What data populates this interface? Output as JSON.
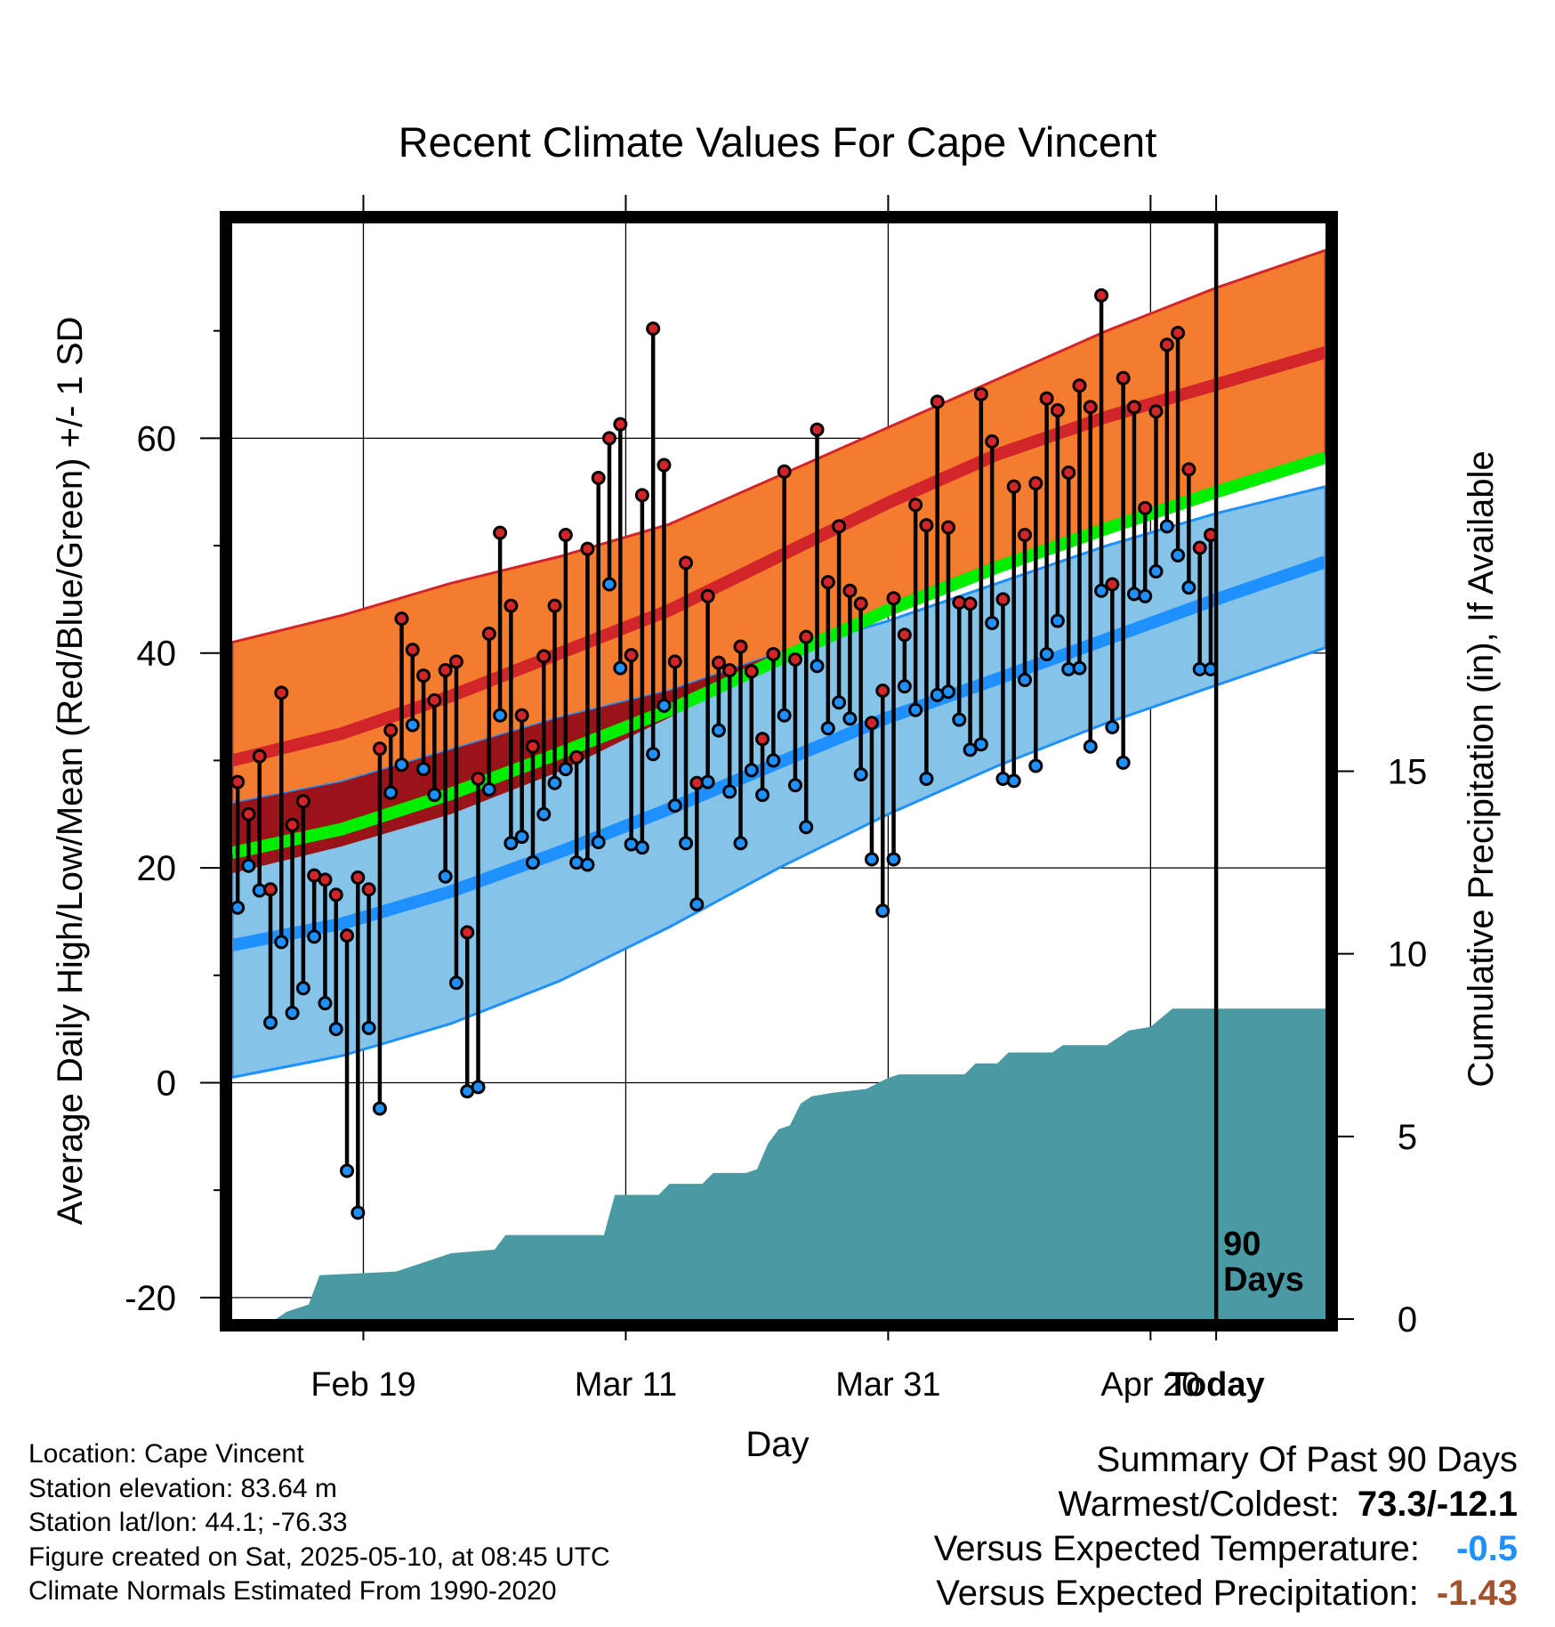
{
  "chart_data": {
    "type": "line",
    "title": "Recent Climate Values For Cape Vincent",
    "xlabel": "Day",
    "ylabel": "Average Daily High/Low/Mean (Red/Blue/Green) +/- 1 SD",
    "y2label": "Cumulative Precipitation (in), If Available",
    "ylim": [
      -22,
      80
    ],
    "y2lim": [
      0,
      30
    ],
    "x_tick_labels": [
      "Feb 19",
      "Mar 11",
      "Mar 31",
      "Apr 20",
      "Today"
    ],
    "y_tick_labels": [
      "-20",
      "0",
      "20",
      "40",
      "60"
    ],
    "y2_tick_labels": [
      "0",
      "5",
      "10",
      "15"
    ],
    "today_marker_label": "90\nDays",
    "grid": true,
    "colors": {
      "high_band": "#f47c2f",
      "high_line": "#d2252a",
      "low_band": "#86c3e8",
      "low_line": "#1e90ff",
      "overlap_band": "#9a1318",
      "mean_line": "#00ee00",
      "precip": "#4a9aa4",
      "high_point": "#d2252a",
      "low_point": "#1e90ff"
    },
    "days_shown": 100,
    "normal_days": [
      0,
      10,
      20,
      30,
      40,
      50,
      60,
      70,
      80,
      90,
      100
    ],
    "normals": {
      "high_mean": [
        30,
        32.5,
        36,
        40,
        44,
        49,
        54,
        58.5,
        62,
        65,
        68
      ],
      "high_plus_sd": [
        41,
        43.5,
        46.5,
        49,
        52,
        56.5,
        61,
        65.5,
        70,
        74,
        77.5
      ],
      "low_mean": [
        12.8,
        14.8,
        17.8,
        21.5,
        25.5,
        29.8,
        34,
        37.6,
        41.3,
        45,
        48.5
      ],
      "low_minus_sd": [
        0.5,
        2.5,
        5.5,
        9.5,
        14.5,
        20,
        25,
        29.5,
        33.5,
        37,
        40.5
      ],
      "high_minus_sd": [
        19.5,
        22,
        25,
        29,
        34,
        39.5,
        44.5,
        48.5,
        52,
        55,
        58
      ],
      "low_plus_sd": [
        26,
        28,
        31,
        34,
        36.5,
        40,
        43,
        46.5,
        50,
        53,
        55.5
      ],
      "avg_mean": [
        21.4,
        23.6,
        26.9,
        30.7,
        34.7,
        39.4,
        44,
        48,
        51.6,
        55,
        58.2
      ]
    },
    "series": [
      {
        "name": "High",
        "values": [
          28,
          25,
          30.4,
          18,
          36.3,
          24,
          26.2,
          19.3,
          18.9,
          17.5,
          13.7,
          19.1,
          18,
          31.1,
          32.8,
          43.2,
          40.3,
          37.9,
          35.6,
          38.4,
          39.2,
          14,
          28.3,
          41.8,
          51.2,
          44.4,
          34.2,
          31.3,
          39.7,
          44.4,
          51,
          30.3,
          49.7,
          56.3,
          60,
          61.3,
          39.8,
          54.7,
          70.2,
          57.5,
          39.2,
          48.4,
          27.9,
          45.3,
          39.1,
          38.4,
          40.6,
          38.3,
          32,
          39.9,
          56.9,
          39.4,
          41.5,
          60.8,
          46.6,
          51.8,
          45.8,
          44.6,
          33.5,
          36.5,
          45.1,
          41.7,
          53.8,
          51.9,
          63.4,
          51.7,
          44.7,
          44.6,
          64.1,
          59.7,
          45,
          55.5,
          51,
          55.8,
          63.7,
          62.6,
          56.8,
          64.9,
          62.9,
          73.3,
          46.4,
          65.6,
          62.9,
          53.5,
          62.5,
          68.7,
          69.8,
          57.1,
          49.8,
          51
        ]
      },
      {
        "name": "Low",
        "values": [
          16.3,
          20.2,
          17.9,
          5.6,
          13.1,
          6.5,
          8.8,
          13.6,
          7.4,
          5,
          -8.2,
          -12.1,
          5.1,
          -2.4,
          27,
          29.6,
          33.3,
          29.2,
          26.8,
          19.2,
          9.3,
          -0.8,
          -0.4,
          27.3,
          34.2,
          22.3,
          22.9,
          20.5,
          25,
          27.9,
          29.2,
          20.5,
          20.3,
          22.4,
          46.4,
          38.6,
          22.2,
          21.9,
          30.6,
          35.1,
          25.8,
          22.3,
          16.6,
          28,
          32.8,
          27.1,
          22.3,
          29.1,
          26.8,
          30,
          34.2,
          27.7,
          23.8,
          38.8,
          33,
          35.4,
          33.9,
          28.7,
          20.8,
          16,
          20.8,
          36.9,
          34.7,
          28.3,
          36.1,
          36.4,
          33.8,
          31,
          31.5,
          42.8,
          28.3,
          28.1,
          37.5,
          29.5,
          39.9,
          43,
          38.5,
          38.6,
          31.3,
          45.8,
          33.1,
          29.8,
          45.5,
          45.3,
          47.6,
          51.8,
          49.1,
          46.1,
          38.5,
          38.5
        ]
      }
    ],
    "precip_cumulative": [
      [
        0,
        0
      ],
      [
        4,
        0
      ],
      [
        5,
        0.2
      ],
      [
        7,
        0.4
      ],
      [
        8,
        1.2
      ],
      [
        15,
        1.3
      ],
      [
        18,
        1.6
      ],
      [
        20,
        1.8
      ],
      [
        24,
        1.9
      ],
      [
        25,
        2.3
      ],
      [
        34,
        2.3
      ],
      [
        35,
        3.4
      ],
      [
        39,
        3.4
      ],
      [
        40,
        3.7
      ],
      [
        43,
        3.7
      ],
      [
        44,
        4
      ],
      [
        47,
        4
      ],
      [
        48,
        4.1
      ],
      [
        49,
        4.8
      ],
      [
        50,
        5.2
      ],
      [
        51,
        5.3
      ],
      [
        52,
        5.9
      ],
      [
        53,
        6.1
      ],
      [
        55,
        6.2
      ],
      [
        58,
        6.3
      ],
      [
        60,
        6.6
      ],
      [
        61,
        6.7
      ],
      [
        67,
        6.7
      ],
      [
        68,
        7
      ],
      [
        70,
        7
      ],
      [
        71,
        7.3
      ],
      [
        75,
        7.3
      ],
      [
        76,
        7.5
      ],
      [
        80,
        7.5
      ],
      [
        81,
        7.7
      ],
      [
        82,
        7.9
      ],
      [
        84,
        8
      ],
      [
        86,
        8.5
      ],
      [
        100,
        8.5
      ]
    ]
  },
  "footer": {
    "location": "Location: Cape Vincent",
    "elevation": "Station elevation: 83.64 m",
    "latlon": "Station lat/lon: 44.1; -76.33",
    "created": "Figure created on Sat, 2025-05-10, at 08:45 UTC",
    "normals": "Climate Normals Estimated From 1990-2020"
  },
  "summary": {
    "title": "Summary Of Past 90 Days",
    "warmest_label": "Warmest/Coldest:",
    "warmest_value": "73.3/-12.1",
    "temp_label": "Versus Expected Temperature:",
    "temp_value": "-0.5",
    "temp_color": "#1e90ff",
    "precip_label": "Versus Expected Precipitation:",
    "precip_value": "-1.43",
    "precip_color": "#a0522d"
  }
}
